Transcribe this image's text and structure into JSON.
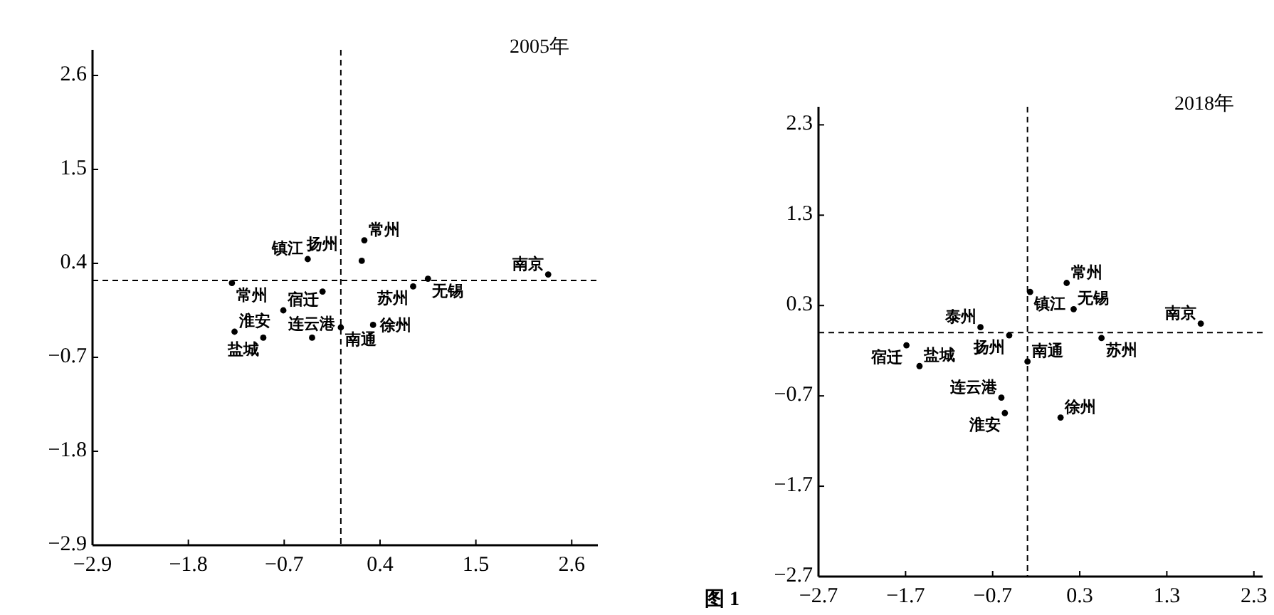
{
  "chart_data": [
    {
      "type": "scatter",
      "title": "2005年",
      "xlim": [
        -2.9,
        2.9
      ],
      "ylim": [
        -2.9,
        2.9
      ],
      "xticks": [
        -2.9,
        -1.8,
        -0.7,
        0.4,
        1.5,
        2.6
      ],
      "yticks": [
        -2.9,
        -1.8,
        -0.7,
        0.4,
        1.5,
        2.6
      ],
      "marker": "circle",
      "series": [
        {
          "color": "#000000",
          "x": [
            -1.3,
            -0.43,
            0.22,
            0.19,
            0.95,
            0.78,
            2.33,
            -0.71,
            -0.26,
            -0.05,
            0.32,
            -1.27,
            -0.94,
            -0.38
          ],
          "values": [
            0.17,
            0.45,
            0.67,
            0.43,
            0.22,
            0.13,
            0.27,
            -0.15,
            0.07,
            -0.35,
            -0.32,
            -0.4,
            -0.47,
            -0.47
          ]
        }
      ],
      "ref_lines": [
        {
          "axis": "x",
          "value": -0.05,
          "line_style": "dashed",
          "color": "#000000"
        },
        {
          "axis": "y",
          "value": 0.2,
          "line_style": "dashed",
          "color": "#000000"
        }
      ],
      "annotations": [
        {
          "text": "常州",
          "x": -1.3,
          "y": 0.17
        },
        {
          "text": "镇江",
          "x": -0.43,
          "y": 0.45
        },
        {
          "text": "常州",
          "x": 0.22,
          "y": 0.67
        },
        {
          "text": "无锡",
          "x": 0.95,
          "y": 0.22
        },
        {
          "text": "苏州",
          "x": 0.78,
          "y": 0.13
        },
        {
          "text": "南京",
          "x": 2.33,
          "y": 0.27
        },
        {
          "text": "宿迁",
          "x": -0.71,
          "y": -0.15
        },
        {
          "text": "扬州",
          "x": -0.26,
          "y": 0.07
        },
        {
          "text": "南通",
          "x": -0.05,
          "y": -0.35
        },
        {
          "text": "徐州",
          "x": 0.32,
          "y": -0.32
        },
        {
          "text": "淮安",
          "x": -1.27,
          "y": -0.4
        },
        {
          "text": "盐城",
          "x": -0.94,
          "y": -0.47
        },
        {
          "text": "连云港",
          "x": -0.38,
          "y": -0.47
        }
      ]
    },
    {
      "type": "scatter",
      "title": "2018年",
      "xlim": [
        -2.7,
        2.4
      ],
      "ylim": [
        -2.7,
        2.5
      ],
      "xticks": [
        -2.7,
        -1.7,
        -0.7,
        0.3,
        1.3,
        2.3
      ],
      "yticks": [
        -2.7,
        -1.7,
        -0.7,
        0.3,
        1.3,
        2.3
      ],
      "marker": "circle",
      "series": [
        {
          "color": "#000000",
          "x": [
            0.15,
            -0.27,
            0.23,
            0.55,
            1.69,
            -0.84,
            -0.51,
            -0.3,
            -0.6,
            -0.56,
            0.08,
            -1.69,
            -1.54
          ],
          "values": [
            0.55,
            0.45,
            0.26,
            -0.06,
            0.1,
            0.06,
            -0.03,
            -0.32,
            -0.72,
            -0.89,
            -0.94,
            -0.14,
            -0.37
          ]
        }
      ],
      "ref_lines": [
        {
          "axis": "x",
          "value": -0.3,
          "line_style": "dashed",
          "color": "#000000"
        },
        {
          "axis": "y",
          "value": 0.0,
          "line_style": "dashed",
          "color": "#000000"
        }
      ],
      "annotations": [
        {
          "text": "常州",
          "x": 0.15,
          "y": 0.55
        },
        {
          "text": "镇江",
          "x": -0.27,
          "y": 0.45
        },
        {
          "text": "无锡",
          "x": 0.23,
          "y": 0.26
        },
        {
          "text": "苏州",
          "x": 0.55,
          "y": -0.06
        },
        {
          "text": "南京",
          "x": 1.69,
          "y": 0.1
        },
        {
          "text": "泰州",
          "x": -0.84,
          "y": 0.06
        },
        {
          "text": "扬州",
          "x": -0.51,
          "y": -0.03
        },
        {
          "text": "南通",
          "x": -0.3,
          "y": -0.32
        },
        {
          "text": "连云港",
          "x": -0.6,
          "y": -0.72
        },
        {
          "text": "淮安",
          "x": -0.56,
          "y": -0.89
        },
        {
          "text": "徐州",
          "x": 0.08,
          "y": -0.94
        },
        {
          "text": "宿迁",
          "x": -1.69,
          "y": -0.14
        },
        {
          "text": "盐城",
          "x": -1.54,
          "y": -0.37
        },
        "图 1"
      ]
    }
  ]
}
